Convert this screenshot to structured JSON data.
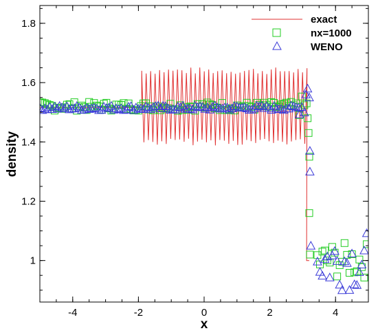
{
  "chart_data": {
    "type": "line",
    "xlabel": "x",
    "ylabel": "density",
    "xlim": [
      -5,
      5
    ],
    "ylim": [
      0.86,
      1.86
    ],
    "xticks": [
      {
        "value": -4,
        "label": "-4"
      },
      {
        "value": -2,
        "label": "-2"
      },
      {
        "value": 0,
        "label": "0"
      },
      {
        "value": 2,
        "label": "2"
      },
      {
        "value": 4,
        "label": "4"
      }
    ],
    "yticks": [
      {
        "value": 1.0,
        "label": "1"
      },
      {
        "value": 1.2,
        "label": "1.2"
      },
      {
        "value": 1.4,
        "label": "1.4"
      },
      {
        "value": 1.6,
        "label": "1.6"
      },
      {
        "value": 1.8,
        "label": "1.8"
      }
    ],
    "legend_position": "top-right",
    "grid": false,
    "series": [
      {
        "name": "exact",
        "style": "line",
        "color": "#e03030",
        "segments": [
          {
            "x_start": -5,
            "x_end": -1.9,
            "value": 1.516
          },
          {
            "x_start": -1.9,
            "x_end": 3.12,
            "center": 1.52,
            "amplitude": 0.12,
            "period": 0.068
          },
          {
            "x_start": 3.12,
            "x_end": 3.2,
            "value": 1.0
          }
        ]
      },
      {
        "name": "nx=1000",
        "style": "marker",
        "marker": "square",
        "color": "#22cc22",
        "segments": [
          {
            "x_start": -5,
            "x_end": 2.9,
            "value": 1.52,
            "spread": 0.015
          },
          {
            "x_start": 2.9,
            "x_end": 3.1,
            "value": 1.52,
            "spread": 0.035
          },
          {
            "x_start": 3.45,
            "x_end": 5,
            "value": 1.0,
            "spread": 0.06
          }
        ],
        "transition": [
          [
            3.12,
            1.53
          ],
          [
            3.15,
            1.48
          ],
          [
            3.18,
            1.43
          ],
          [
            3.2,
            1.35
          ],
          [
            3.2,
            1.16
          ],
          [
            3.22,
            1.02
          ]
        ]
      },
      {
        "name": "WENO",
        "style": "marker",
        "marker": "triangle",
        "color": "#3b3bd8",
        "segments": [
          {
            "x_start": -5,
            "x_end": 2.9,
            "value": 1.515,
            "spread": 0.008
          },
          {
            "x_start": 2.9,
            "x_end": 3.1,
            "value": 1.52,
            "spread": 0.03
          },
          {
            "x_start": 3.45,
            "x_end": 5,
            "value": 1.0,
            "spread": 0.1
          }
        ],
        "transition": [
          [
            3.1,
            1.56
          ],
          [
            3.15,
            1.58
          ],
          [
            3.2,
            1.55
          ],
          [
            3.22,
            1.37
          ],
          [
            3.22,
            1.3
          ],
          [
            3.25,
            1.05
          ]
        ]
      }
    ]
  }
}
